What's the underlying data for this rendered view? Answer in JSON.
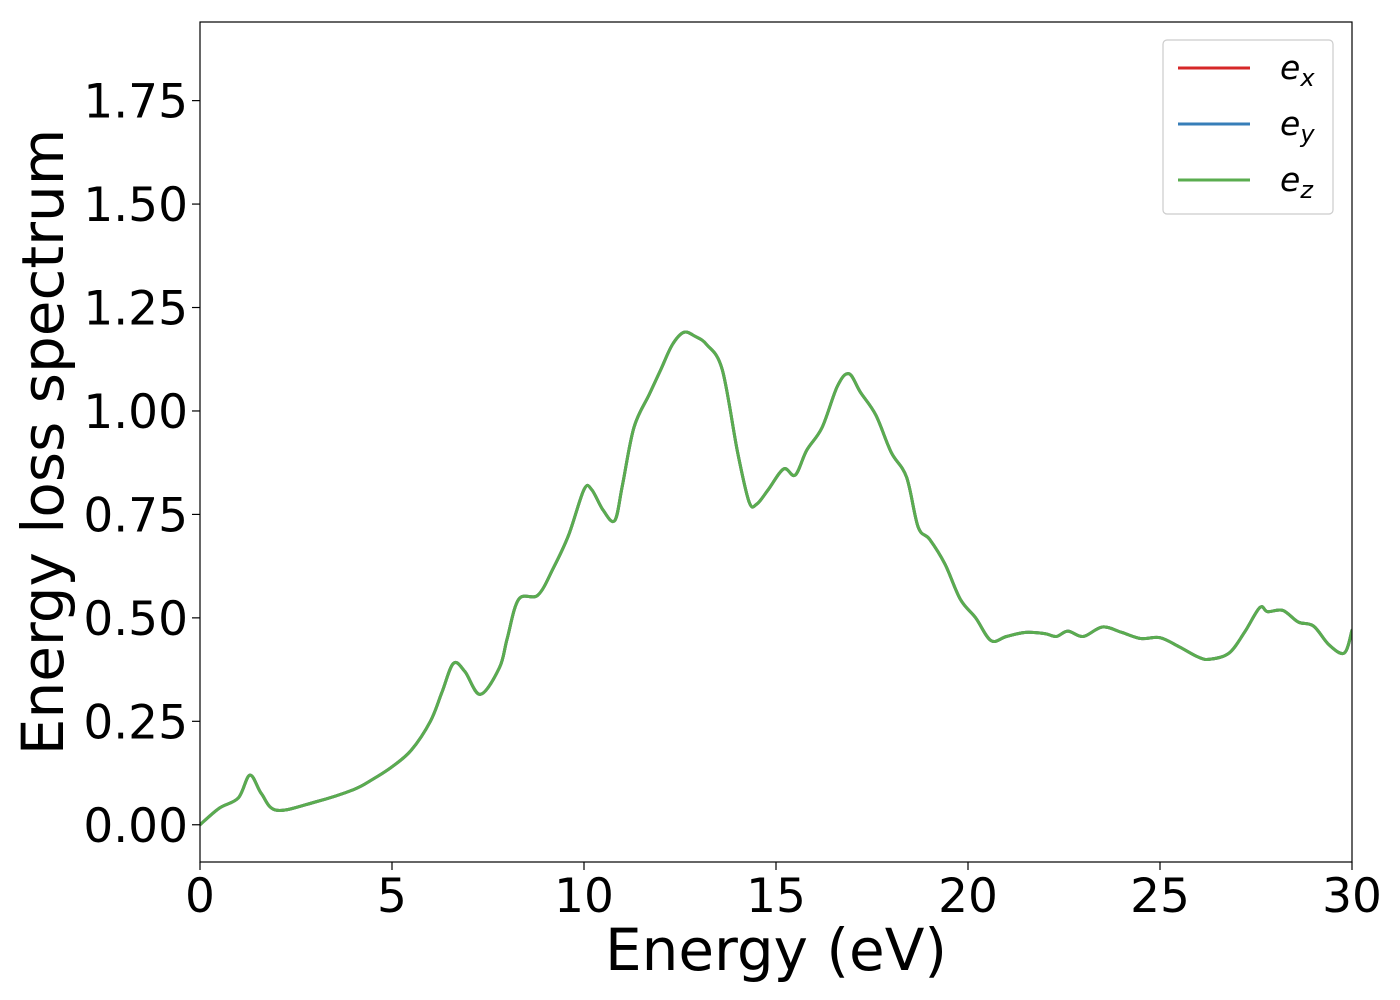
{
  "chart_data": {
    "type": "line",
    "title": "",
    "xlabel": "Energy (eV)",
    "ylabel": "Energy loss spectrum",
    "xlim": [
      0,
      30
    ],
    "ylim": [
      -0.09,
      1.94
    ],
    "xticks": [
      0,
      5,
      10,
      15,
      20,
      25,
      30
    ],
    "xtick_labels": [
      "0",
      "5",
      "10",
      "15",
      "20",
      "25",
      "30"
    ],
    "yticks": [
      0,
      0.25,
      0.5,
      0.75,
      1.0,
      1.25,
      1.5,
      1.75
    ],
    "ytick_labels": [
      "0.00",
      "0.25",
      "0.50",
      "0.75",
      "1.00",
      "1.25",
      "1.50",
      "1.75"
    ],
    "grid": false,
    "legend_position": "top-right",
    "x": [
      0,
      0.5,
      1.0,
      1.3,
      1.6,
      2.0,
      3.0,
      4.0,
      4.5,
      5.0,
      5.5,
      6.0,
      6.3,
      6.6,
      6.9,
      7.3,
      7.8,
      8.0,
      8.3,
      8.8,
      9.2,
      9.6,
      10.0,
      10.2,
      10.5,
      10.8,
      11.0,
      11.3,
      11.7,
      12.0,
      12.3,
      12.6,
      12.9,
      13.2,
      13.6,
      14.0,
      14.3,
      14.5,
      14.8,
      15.2,
      15.5,
      15.8,
      16.2,
      16.6,
      16.9,
      17.2,
      17.6,
      18.0,
      18.4,
      18.7,
      19.0,
      19.4,
      19.8,
      20.2,
      20.6,
      21.0,
      21.5,
      22.0,
      22.3,
      22.6,
      23.0,
      23.5,
      24.0,
      24.5,
      25.0,
      25.5,
      26.0,
      26.3,
      26.8,
      27.2,
      27.6,
      27.8,
      28.2,
      28.6,
      29.0,
      29.4,
      29.8,
      30.0
    ],
    "series": [
      {
        "name": "e_x",
        "label_base": "e",
        "label_sub": "x",
        "color": "#d62728",
        "y": [
          0.0,
          0.04,
          0.065,
          0.12,
          0.075,
          0.035,
          0.055,
          0.085,
          0.11,
          0.14,
          0.18,
          0.25,
          0.32,
          0.39,
          0.37,
          0.315,
          0.38,
          0.45,
          0.545,
          0.555,
          0.62,
          0.7,
          0.81,
          0.81,
          0.76,
          0.735,
          0.82,
          0.96,
          1.04,
          1.1,
          1.16,
          1.19,
          1.18,
          1.16,
          1.1,
          0.9,
          0.78,
          0.775,
          0.81,
          0.86,
          0.845,
          0.905,
          0.96,
          1.06,
          1.09,
          1.045,
          0.99,
          0.9,
          0.84,
          0.72,
          0.69,
          0.63,
          0.545,
          0.5,
          0.445,
          0.455,
          0.465,
          0.462,
          0.455,
          0.468,
          0.455,
          0.478,
          0.465,
          0.45,
          0.452,
          0.43,
          0.405,
          0.4,
          0.415,
          0.465,
          0.525,
          0.515,
          0.518,
          0.49,
          0.48,
          0.435,
          0.415,
          0.47
        ]
      },
      {
        "name": "e_y",
        "label_base": "e",
        "label_sub": "y",
        "color": "#377eb8",
        "y": [
          0.0,
          0.04,
          0.065,
          0.12,
          0.075,
          0.035,
          0.055,
          0.085,
          0.11,
          0.14,
          0.18,
          0.25,
          0.32,
          0.39,
          0.37,
          0.315,
          0.38,
          0.45,
          0.545,
          0.555,
          0.62,
          0.7,
          0.81,
          0.81,
          0.76,
          0.735,
          0.82,
          0.96,
          1.04,
          1.1,
          1.16,
          1.19,
          1.18,
          1.16,
          1.1,
          0.9,
          0.78,
          0.775,
          0.81,
          0.86,
          0.845,
          0.905,
          0.96,
          1.06,
          1.09,
          1.045,
          0.99,
          0.9,
          0.84,
          0.72,
          0.69,
          0.63,
          0.545,
          0.5,
          0.445,
          0.455,
          0.465,
          0.462,
          0.455,
          0.468,
          0.455,
          0.478,
          0.465,
          0.45,
          0.452,
          0.43,
          0.405,
          0.4,
          0.415,
          0.465,
          0.525,
          0.515,
          0.518,
          0.49,
          0.48,
          0.435,
          0.415,
          0.47
        ]
      },
      {
        "name": "e_z",
        "label_base": "e",
        "label_sub": "z",
        "color": "#5aac4f",
        "y": [
          0.0,
          0.04,
          0.065,
          0.12,
          0.075,
          0.035,
          0.055,
          0.085,
          0.11,
          0.14,
          0.18,
          0.25,
          0.32,
          0.39,
          0.37,
          0.315,
          0.38,
          0.45,
          0.545,
          0.555,
          0.62,
          0.7,
          0.81,
          0.81,
          0.76,
          0.735,
          0.82,
          0.96,
          1.04,
          1.1,
          1.16,
          1.19,
          1.18,
          1.16,
          1.1,
          0.9,
          0.78,
          0.775,
          0.81,
          0.86,
          0.845,
          0.905,
          0.96,
          1.06,
          1.09,
          1.045,
          0.99,
          0.9,
          0.84,
          0.72,
          0.69,
          0.63,
          0.545,
          0.5,
          0.445,
          0.455,
          0.465,
          0.462,
          0.455,
          0.468,
          0.455,
          0.478,
          0.465,
          0.45,
          0.452,
          0.43,
          0.405,
          0.4,
          0.415,
          0.465,
          0.525,
          0.515,
          0.518,
          0.49,
          0.48,
          0.435,
          0.415,
          0.47
        ]
      }
    ]
  }
}
